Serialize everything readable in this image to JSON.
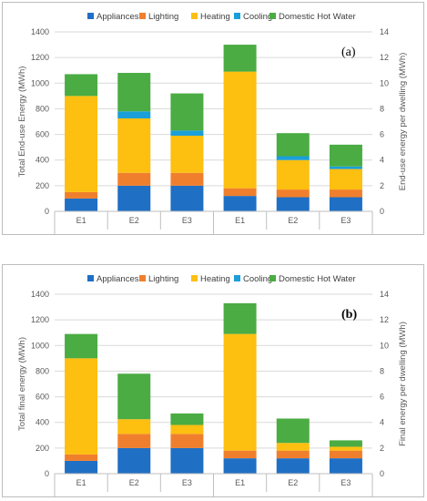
{
  "colors": {
    "Appliances": "#1f6fc5",
    "Lighting": "#f07f2d",
    "Heating": "#fdbf10",
    "Cooling": "#1a9fd9",
    "Domestic Hot Water": "#4aac43"
  },
  "chart_data": [
    {
      "type": "bar",
      "stacked": true,
      "panel_label": "(a)",
      "legend": [
        "Appliances",
        "Lighting",
        "Heating",
        "Cooling",
        "Domestic Hot Water"
      ],
      "legend_position": "top",
      "ylabel": "Total End-use Energy (MWh)",
      "y2label": "End-use energy per dwelling (MWh)",
      "ylim": [
        0,
        1400
      ],
      "y2lim": [
        0,
        14
      ],
      "yticks": [
        0,
        200,
        400,
        600,
        800,
        1000,
        1200,
        1400
      ],
      "y2ticks": [
        0,
        2,
        4,
        6,
        8,
        10,
        12,
        14
      ],
      "categories": [
        "E1",
        "E2",
        "E3",
        "E1",
        "E2",
        "E3"
      ],
      "groups": [
        {
          "label": "Total",
          "axis": "left",
          "count": 3
        },
        {
          "label": "Per dwelling",
          "axis": "right",
          "count": 3
        }
      ],
      "series": [
        {
          "name": "Appliances",
          "values": [
            100,
            200,
            200,
            1.2,
            1.1,
            1.1
          ]
        },
        {
          "name": "Lighting",
          "values": [
            50,
            100,
            100,
            0.6,
            0.6,
            0.6
          ]
        },
        {
          "name": "Heating",
          "values": [
            750,
            425,
            290,
            9.1,
            2.3,
            1.6
          ]
        },
        {
          "name": "Cooling",
          "values": [
            0,
            55,
            40,
            0,
            0.3,
            0.2
          ]
        },
        {
          "name": "Domestic Hot Water",
          "values": [
            170,
            300,
            290,
            2.1,
            1.8,
            1.7
          ]
        }
      ]
    },
    {
      "type": "bar",
      "stacked": true,
      "panel_label": "(b)",
      "legend": [
        "Appliances",
        "Lighting",
        "Heating",
        "Cooling",
        "Domestic Hot Water"
      ],
      "legend_position": "top",
      "ylabel": "Total final energy (MWh)",
      "y2label": "Final energy per dwelling (MWh)",
      "ylim": [
        0,
        1400
      ],
      "y2lim": [
        0,
        14
      ],
      "yticks": [
        0,
        200,
        400,
        600,
        800,
        1000,
        1200,
        1400
      ],
      "y2ticks": [
        0,
        2,
        4,
        6,
        8,
        10,
        12,
        14
      ],
      "categories": [
        "E1",
        "E2",
        "E3",
        "E1",
        "E2",
        "E3"
      ],
      "groups": [
        {
          "label": "Total",
          "axis": "left",
          "count": 3
        },
        {
          "label": "Per dwelling",
          "axis": "right",
          "count": 3
        }
      ],
      "series": [
        {
          "name": "Appliances",
          "values": [
            100,
            200,
            200,
            1.2,
            1.2,
            1.2
          ]
        },
        {
          "name": "Lighting",
          "values": [
            50,
            110,
            110,
            0.6,
            0.6,
            0.6
          ]
        },
        {
          "name": "Heating",
          "values": [
            750,
            115,
            70,
            9.1,
            0.6,
            0.3
          ]
        },
        {
          "name": "Cooling",
          "values": [
            0,
            0,
            0,
            0,
            0,
            0
          ]
        },
        {
          "name": "Domestic Hot Water",
          "values": [
            190,
            355,
            90,
            2.4,
            1.9,
            0.5
          ]
        }
      ]
    }
  ]
}
